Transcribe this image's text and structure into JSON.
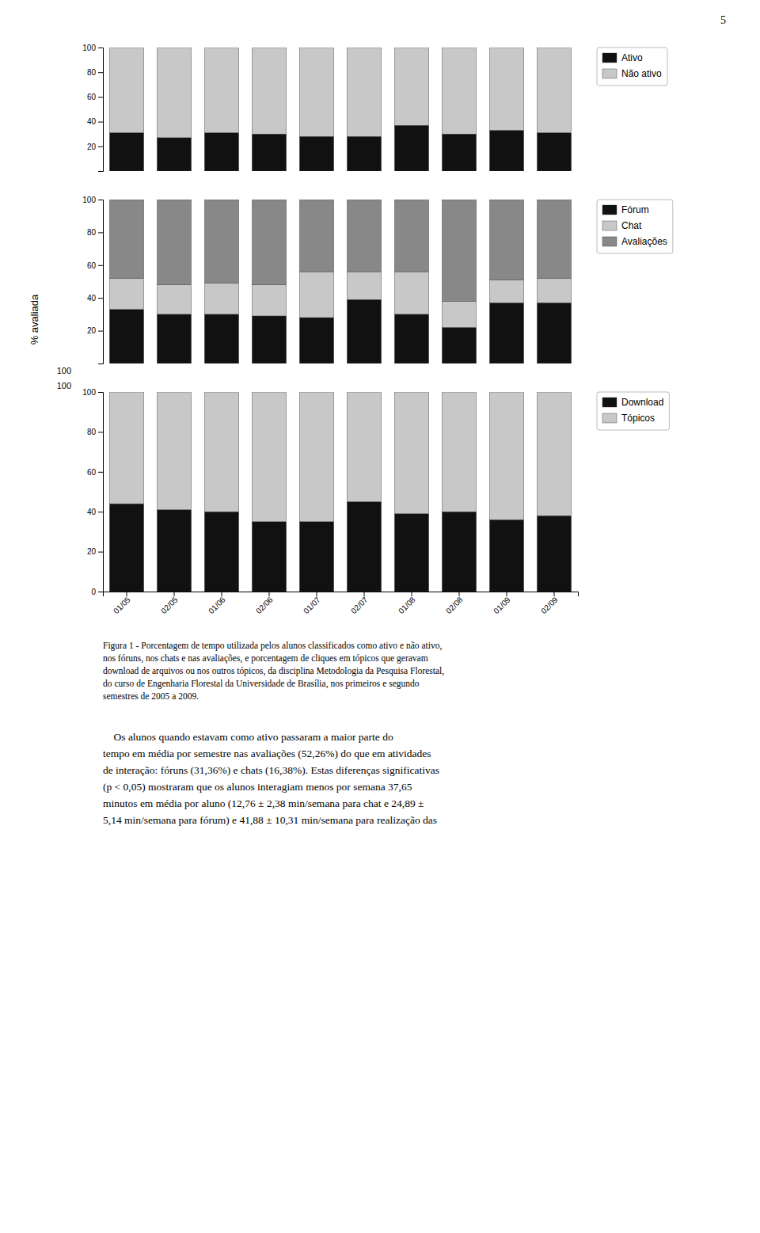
{
  "chart_data": [
    {
      "type": "bar",
      "stacked": true,
      "categories": [
        "01/05",
        "02/05",
        "01/06",
        "02/06",
        "01/07",
        "02/07",
        "01/08",
        "02/08",
        "01/09",
        "02/09"
      ],
      "series": [
        {
          "name": "Ativo",
          "color": "#111111",
          "values": [
            31,
            27,
            31,
            30,
            28,
            28,
            37,
            30,
            33,
            31
          ]
        },
        {
          "name": "Não ativo",
          "color": "#c8c8c8",
          "values": [
            69,
            73,
            69,
            70,
            72,
            72,
            63,
            70,
            67,
            69
          ]
        }
      ],
      "ylim": [
        0,
        100
      ],
      "yticks": [
        20,
        40,
        60,
        80,
        100
      ],
      "grid": false,
      "legend": "right",
      "tick_labels": "y"
    },
    {
      "type": "bar",
      "stacked": true,
      "categories": [
        "01/05",
        "02/05",
        "01/06",
        "02/06",
        "01/07",
        "02/07",
        "01/08",
        "02/08",
        "01/09",
        "02/09"
      ],
      "series": [
        {
          "name": "Fórum",
          "color": "#111111",
          "values": [
            33,
            30,
            30,
            29,
            28,
            39,
            30,
            22,
            37,
            37
          ]
        },
        {
          "name": "Chat",
          "color": "#c8c8c8",
          "values": [
            19,
            18,
            19,
            19,
            28,
            17,
            26,
            16,
            14,
            15
          ]
        },
        {
          "name": "Avaliações",
          "color": "#888888",
          "values": [
            48,
            52,
            51,
            52,
            44,
            44,
            44,
            62,
            49,
            48
          ]
        }
      ],
      "ylabel": "% avaliada",
      "annotations": [
        {
          "text": "100"
        }
      ],
      "ylim": [
        0,
        100
      ],
      "yticks": [
        20,
        40,
        60,
        80,
        100
      ],
      "grid": false,
      "legend": "right",
      "tick_labels": "y"
    },
    {
      "type": "bar",
      "stacked": true,
      "categories": [
        "01/05",
        "02/05",
        "01/06",
        "02/06",
        "01/07",
        "02/07",
        "01/08",
        "02/08",
        "01/09",
        "02/09"
      ],
      "series": [
        {
          "name": "Download",
          "color": "#111111",
          "values": [
            44,
            41,
            40,
            35,
            35,
            45,
            39,
            40,
            36,
            38
          ]
        },
        {
          "name": "Tópicos",
          "color": "#c8c8c8",
          "values": [
            56,
            59,
            60,
            65,
            65,
            55,
            61,
            60,
            64,
            62
          ]
        }
      ],
      "annotations": [
        {
          "text": "100"
        }
      ],
      "ylim": [
        0,
        100
      ],
      "yticks": [
        0,
        20,
        40,
        60,
        80,
        100
      ],
      "grid": false,
      "legend": "right"
    }
  ],
  "figcaption": "Figura 1 - Porcentagem de tempo utilizada pelos alunos classificados como ativo e não ativo,\nnos fóruns, nos chats e nas avaliações, e porcentagem de cliques em tópicos que geravam\ndownload de arquivos ou nos outros tópicos, da disciplina Metodologia da Pesquisa Florestal,\ndo curso de Engenharia Florestal da Universidade de Brasília, nos primeiros e segundo\nsemestres de 2005 a 2009.",
  "body_text": "    Os alunos quando estavam como ativo passaram a maior parte do\ntempo em média por semestre nas avaliações (52,26%) do que em atividades\nde interação: fóruns (31,36%) e chats (16,38%). Estas diferenças significativas\n(p < 0,05) mostraram que os alunos interagiam menos por semana 37,65\nminutos em média por aluno (12,76 ± 2,38 min/semana para chat e 24,89 ±\n5,14 min/semana para fórum) e 41,88 ± 10,31 min/semana para realização das",
  "page_number": "5"
}
